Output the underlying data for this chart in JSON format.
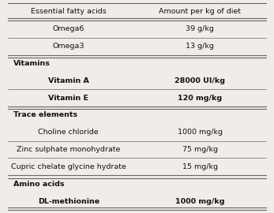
{
  "rows": [
    {
      "label": "Essential fatty acids",
      "value": "Amount per kg of diet",
      "bold": false,
      "header": true,
      "is_section": false
    },
    {
      "label": "Omega6",
      "value": "39 g/kg",
      "bold": false,
      "header": false,
      "is_section": false
    },
    {
      "label": "Omega3",
      "value": "13 g/kg",
      "bold": false,
      "header": false,
      "is_section": false
    },
    {
      "label": "Vitamins",
      "value": "",
      "bold": true,
      "header": false,
      "is_section": true
    },
    {
      "label": "Vitamin A",
      "value": "28000 UI/kg",
      "bold": true,
      "header": false,
      "is_section": false
    },
    {
      "label": "Vitamin E",
      "value": "120 mg/kg",
      "bold": true,
      "header": false,
      "is_section": false
    },
    {
      "label": "Trace elements",
      "value": "",
      "bold": true,
      "header": false,
      "is_section": true
    },
    {
      "label": "Choline chloride",
      "value": "1000 mg/kg",
      "bold": false,
      "header": false,
      "is_section": false
    },
    {
      "label": "Zinc sulphate monohydrate",
      "value": "75 mg/kg",
      "bold": false,
      "header": false,
      "is_section": false
    },
    {
      "label": "Cupric chelate glycine hydrate",
      "value": "15 mg/kg",
      "bold": false,
      "header": false,
      "is_section": false
    },
    {
      "label": "Amino acids",
      "value": "",
      "bold": true,
      "header": false,
      "is_section": true
    },
    {
      "label": "DL-methionine",
      "value": "1000 mg/kg",
      "bold": true,
      "header": false,
      "is_section": false
    }
  ],
  "bg_color": "#f0ede8",
  "line_color": "#666666",
  "text_color": "#111111",
  "fontsize": 6.8,
  "fig_width": 3.47,
  "fig_height": 2.7,
  "dpi": 100
}
